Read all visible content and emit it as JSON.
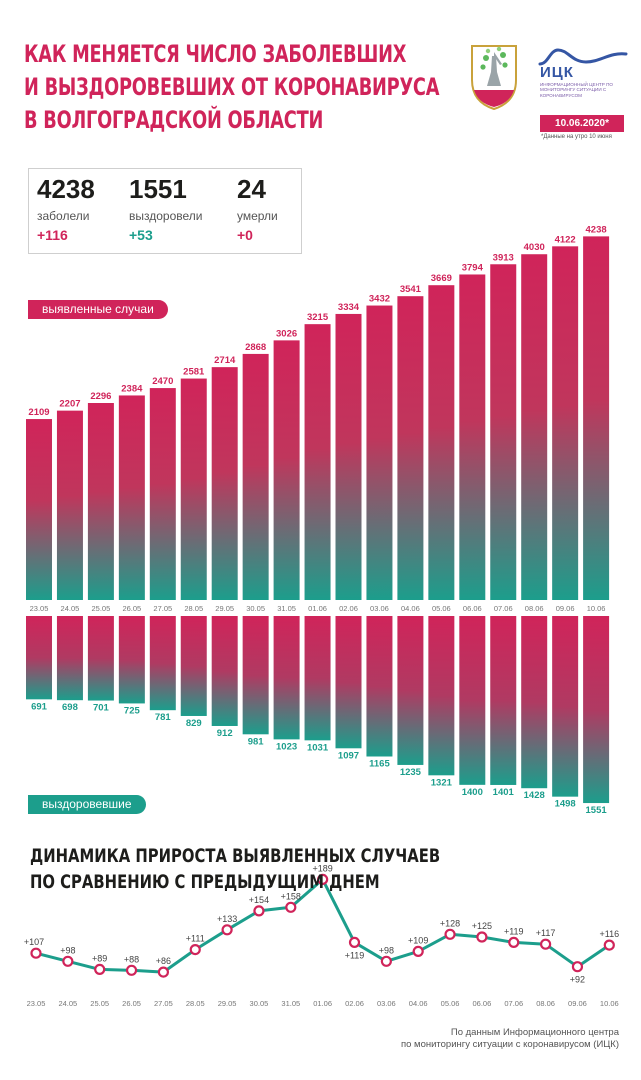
{
  "header": {
    "title_lines": [
      "КАК МЕНЯЕТСЯ ЧИСЛО ЗАБОЛЕВШИХ",
      "И ВЫЗДОРОВЕВШИХ ОТ КОРОНАВИРУСА",
      "В ВОЛГОГРАДСКОЙ ОБЛАСТИ"
    ],
    "brand_name": "ИЦК",
    "brand_subtitle": "Информационный центр по мониторингу ситуации с коронавирусом",
    "date": "10.06.2020*",
    "date_note": "*Данные на утро 10 июня"
  },
  "stats": {
    "infected": {
      "value": "4238",
      "label": "заболели",
      "delta": "+116"
    },
    "recovered": {
      "value": "1551",
      "label": "выздоровели",
      "delta": "+53"
    },
    "died": {
      "value": "24",
      "label": "умерли",
      "delta": "+0"
    }
  },
  "labels": {
    "cases": "выявленные случаи",
    "recovered": "выздоровевшие"
  },
  "section2": {
    "title_lines": [
      "ДИНАМИКА ПРИРОСТА ВЫЯВЛЕННЫХ СЛУЧАЕВ",
      "ПО СРАВНЕНИЮ С ПРЕДЫДУЩИМ ДНЕМ"
    ]
  },
  "source_lines": [
    "По данным Информационного центра",
    "по мониторингу ситуации с коронавирусом (ИЦК)"
  ],
  "colors": {
    "pink": "#d0245a",
    "teal": "#1c9e8c"
  },
  "chart_data": [
    {
      "type": "bar",
      "categories": [
        "23.05",
        "24.05",
        "25.05",
        "26.05",
        "27.05",
        "28.05",
        "29.05",
        "30.05",
        "31.05",
        "01.06",
        "02.06",
        "03.06",
        "04.06",
        "05.06",
        "06.06",
        "07.06",
        "08.06",
        "09.06",
        "10.06"
      ],
      "series": [
        {
          "name": "выявленные случаи",
          "values": [
            2109,
            2207,
            2296,
            2384,
            2470,
            2581,
            2714,
            2868,
            3026,
            3215,
            3334,
            3432,
            3541,
            3669,
            3794,
            3913,
            4030,
            4122,
            4238
          ]
        },
        {
          "name": "выздоровевшие",
          "values": [
            691,
            698,
            701,
            725,
            781,
            829,
            912,
            981,
            1023,
            1031,
            1097,
            1165,
            1235,
            1321,
            1400,
            1401,
            1428,
            1498,
            1551
          ]
        }
      ]
    },
    {
      "type": "line",
      "title": "ДИНАМИКА ПРИРОСТА ВЫЯВЛЕННЫХ СЛУЧАЕВ ПО СРАВНЕНИЮ С ПРЕДЫДУЩИМ ДНЕМ",
      "categories": [
        "23.05",
        "24.05",
        "25.05",
        "26.05",
        "27.05",
        "28.05",
        "29.05",
        "30.05",
        "31.05",
        "01.06",
        "02.06",
        "03.06",
        "04.06",
        "05.06",
        "06.06",
        "07.06",
        "08.06",
        "09.06",
        "10.06"
      ],
      "values": [
        107,
        98,
        89,
        88,
        86,
        111,
        133,
        154,
        158,
        189,
        119,
        98,
        109,
        128,
        125,
        119,
        117,
        92,
        116
      ],
      "value_labels": [
        "+107",
        "+98",
        "+89",
        "+88",
        "+86",
        "+111",
        "+133",
        "+154",
        "+158",
        "+189",
        "+119",
        "+98",
        "+109",
        "+128",
        "+125",
        "+119",
        "+117",
        "+92",
        "+116"
      ]
    }
  ]
}
